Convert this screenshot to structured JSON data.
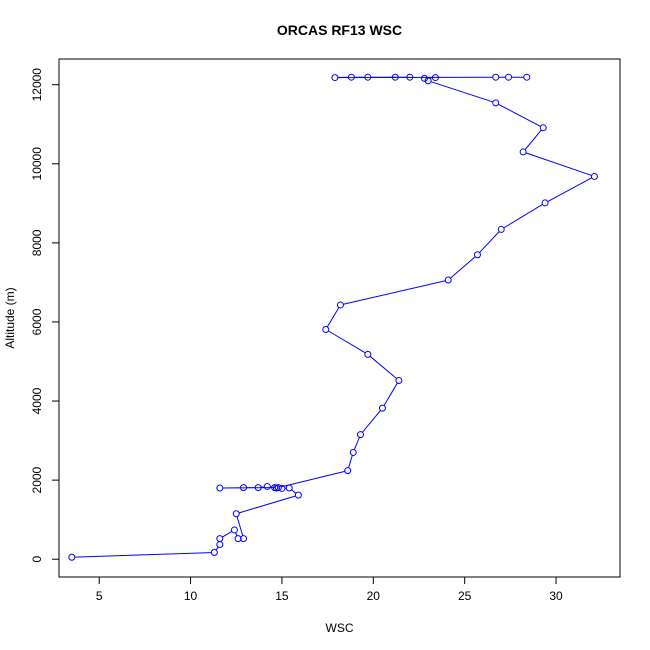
{
  "chart_data": {
    "type": "line",
    "title": "ORCAS RF13 WSC",
    "xlabel": "WSC",
    "ylabel": "Altitude (m)",
    "xlim": [
      2.8,
      33.5
    ],
    "ylim": [
      -450,
      12650
    ],
    "x_ticks": [
      5,
      10,
      15,
      20,
      25,
      30
    ],
    "y_ticks": [
      0,
      2000,
      4000,
      6000,
      8000,
      10000,
      12000
    ],
    "grid": false,
    "legend": "none",
    "color": "#0000ff",
    "series": [
      {
        "marker": "open-circle",
        "points": [
          [
            3.5,
            50
          ],
          [
            11.3,
            170
          ],
          [
            11.6,
            370
          ],
          [
            11.6,
            520
          ],
          [
            12.4,
            740
          ],
          [
            12.6,
            520
          ],
          [
            12.9,
            520
          ],
          [
            12.5,
            1150
          ],
          [
            15.9,
            1620
          ],
          [
            15.4,
            1800
          ],
          [
            15.0,
            1790
          ],
          [
            14.7,
            1800
          ],
          [
            14.6,
            1810
          ],
          [
            14.2,
            1840
          ],
          [
            13.7,
            1810
          ],
          [
            12.9,
            1810
          ],
          [
            11.6,
            1800
          ],
          [
            14.8,
            1810
          ],
          [
            18.6,
            2240
          ],
          [
            18.9,
            2700
          ],
          [
            19.3,
            3150
          ],
          [
            20.5,
            3820
          ],
          [
            21.4,
            4520
          ],
          [
            19.7,
            5180
          ],
          [
            17.4,
            5810
          ],
          [
            18.2,
            6430
          ],
          [
            24.1,
            7060
          ],
          [
            25.7,
            7700
          ],
          [
            27.0,
            8340
          ],
          [
            29.4,
            9010
          ],
          [
            32.1,
            9680
          ],
          [
            28.2,
            10300
          ],
          [
            29.3,
            10910
          ],
          [
            26.7,
            11540
          ],
          [
            23.0,
            12100
          ],
          [
            22.8,
            12160
          ],
          [
            23.4,
            12180
          ],
          [
            21.2,
            12190
          ],
          [
            22.0,
            12190
          ],
          [
            19.7,
            12190
          ],
          [
            18.8,
            12190
          ],
          [
            17.9,
            12180
          ],
          [
            26.7,
            12190
          ],
          [
            27.4,
            12190
          ],
          [
            28.4,
            12190
          ]
        ]
      }
    ]
  }
}
